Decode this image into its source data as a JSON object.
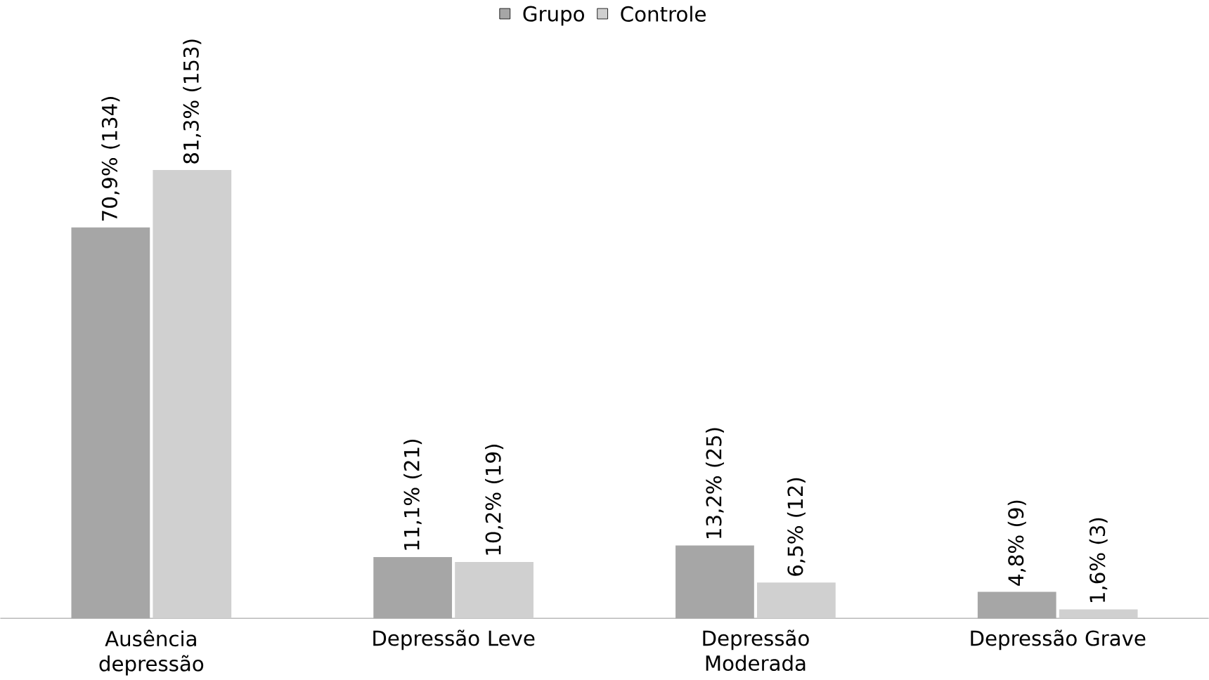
{
  "chart_data": {
    "type": "bar",
    "categories": [
      "Ausência depressão",
      "Depressão Leve",
      "Depressão Moderada",
      "Depressão Grave"
    ],
    "series": [
      {
        "name": "Grupo",
        "color": "#a6a6a6",
        "values": [
          70.9,
          11.1,
          13.2,
          4.8
        ],
        "value_labels": [
          "70,9% (134)",
          "11,1% (21)",
          "13,2% (25)",
          "4,8% (9)"
        ]
      },
      {
        "name": "Controle",
        "color": "#d0d0d0",
        "values": [
          81.3,
          10.2,
          6.5,
          1.6
        ],
        "value_labels": [
          "81,3% (153)",
          "10,2% (19)",
          "6,5% (12)",
          "1,6% (3)"
        ]
      }
    ],
    "legend": "top"
  }
}
